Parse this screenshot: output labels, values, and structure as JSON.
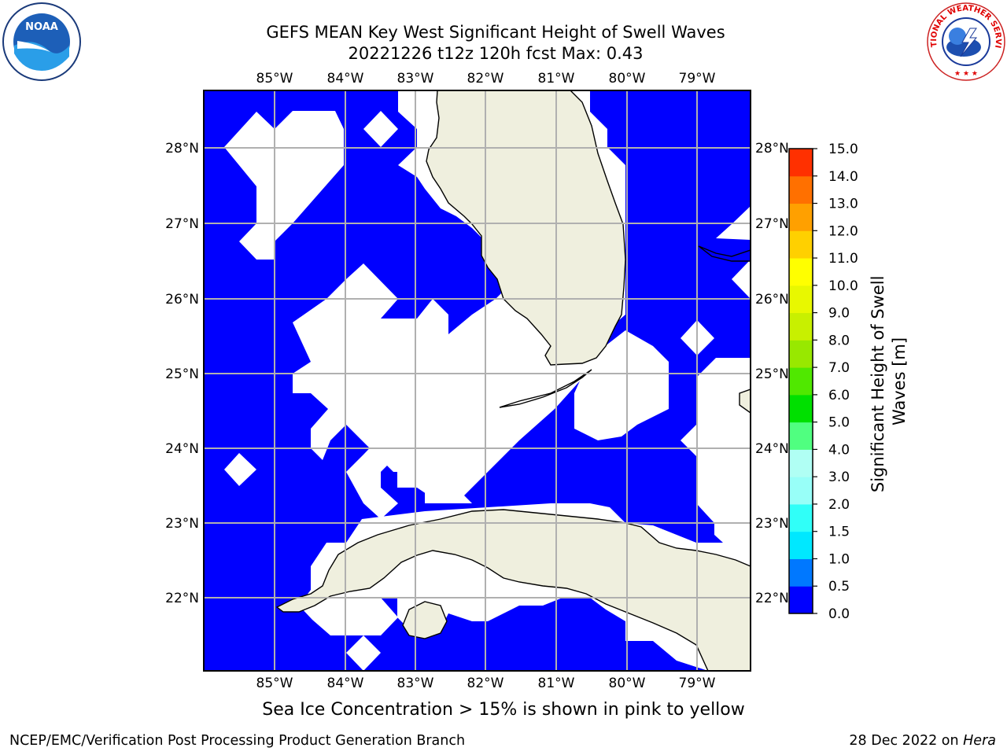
{
  "title_line1": "GEFS MEAN Key West Significant Height of Swell Waves",
  "title_line2": "20221226 t12z 120h fcst   Max: 0.43",
  "logos": {
    "left": "noaa-logo",
    "right": "nws-logo",
    "left_text": "NOAA",
    "right_text": "NATIONAL WEATHER SERVICE"
  },
  "note": "Sea Ice Concentration > 15% is shown in pink to yellow",
  "footer_left": "NCEP/EMC/Verification Post Processing Product Generation Branch",
  "footer_right_date": "28 Dec 2022 on ",
  "footer_right_host": "Hera",
  "map": {
    "lon_labels": [
      "85°W",
      "84°W",
      "83°W",
      "82°W",
      "81°W",
      "80°W",
      "79°W"
    ],
    "lat_labels": [
      "28°N",
      "27°N",
      "26°N",
      "25°N",
      "24°N",
      "23°N",
      "22°N"
    ],
    "colors": {
      "ocean_low": "#0000ff",
      "land": "#efefde",
      "undefined": "#ffffff",
      "grid": "#b0b0b0"
    }
  },
  "colorbar": {
    "title_line1": "Significant Height of Swell",
    "title_line2": "Waves [m]",
    "ticks": [
      "0.0",
      "0.5",
      "1.0",
      "1.5",
      "2.0",
      "3.0",
      "4.0",
      "5.0",
      "6.0",
      "7.0",
      "8.0",
      "9.0",
      "10.0",
      "11.0",
      "12.0",
      "13.0",
      "14.0",
      "15.0"
    ],
    "colors": [
      "#0000ff",
      "#0078ff",
      "#00e8ff",
      "#30fff8",
      "#98fff8",
      "#b0fff4",
      "#50ff80",
      "#00e000",
      "#50e800",
      "#98e800",
      "#c8f000",
      "#e8f800",
      "#ffff00",
      "#ffd000",
      "#ffa000",
      "#ff7000",
      "#ff3000",
      "#ff0000"
    ]
  }
}
